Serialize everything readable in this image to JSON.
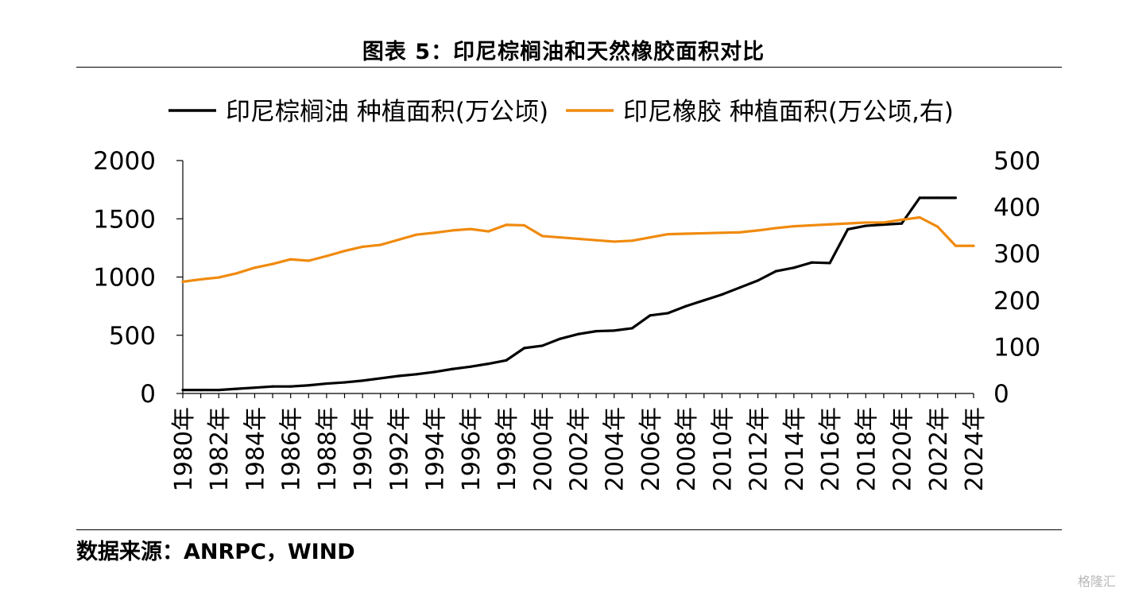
{
  "title": "图表 5：印尼棕榈油和天然橡胶面积对比",
  "source": "数据来源：ANRPC，WIND",
  "watermark": "格隆汇",
  "chart_data": {
    "type": "line",
    "title": "图表 5：印尼棕榈油和天然橡胶面积对比",
    "legend_position": "top",
    "grid": false,
    "x": [
      "1980年",
      "1981年",
      "1982年",
      "1983年",
      "1984年",
      "1985年",
      "1986年",
      "1987年",
      "1988年",
      "1989年",
      "1990年",
      "1991年",
      "1992年",
      "1993年",
      "1994年",
      "1995年",
      "1996年",
      "1997年",
      "1998年",
      "1999年",
      "2000年",
      "2001年",
      "2002年",
      "2003年",
      "2004年",
      "2005年",
      "2006年",
      "2007年",
      "2008年",
      "2009年",
      "2010年",
      "2011年",
      "2012年",
      "2013年",
      "2014年",
      "2015年",
      "2016年",
      "2017年",
      "2018年",
      "2019年",
      "2020年",
      "2021年",
      "2022年",
      "2023年",
      "2024年"
    ],
    "x_tick_labels": [
      "1980年",
      "1982年",
      "1984年",
      "1986年",
      "1988年",
      "1990年",
      "1992年",
      "1994年",
      "1996年",
      "1998年",
      "2000年",
      "2002年",
      "2004年",
      "2006年",
      "2008年",
      "2010年",
      "2012年",
      "2014年",
      "2016年",
      "2018年",
      "2020年",
      "2022年",
      "2024年"
    ],
    "y_left": {
      "ylim": [
        0,
        2000
      ],
      "ticks": [
        0,
        500,
        1000,
        1500,
        2000
      ]
    },
    "y_right": {
      "ylim": [
        0,
        500
      ],
      "ticks": [
        0,
        100,
        200,
        300,
        400,
        500
      ]
    },
    "series": [
      {
        "name": "印尼棕榈油 种植面积(万公顷)",
        "axis": "left",
        "color": "#000000",
        "values": [
          30,
          30,
          30,
          40,
          50,
          60,
          60,
          70,
          85,
          95,
          110,
          130,
          150,
          165,
          185,
          210,
          230,
          255,
          285,
          390,
          410,
          470,
          510,
          535,
          540,
          560,
          670,
          690,
          750,
          800,
          850,
          910,
          970,
          1050,
          1080,
          1125,
          1120,
          1410,
          1440,
          1450,
          1460,
          1680,
          1680,
          1680,
          null
        ]
      },
      {
        "name": "印尼橡胶 种植面积(万公顷,右)",
        "axis": "right",
        "color": "#F08A0E",
        "values": [
          240,
          245,
          249,
          258,
          270,
          278,
          288,
          285,
          295,
          306,
          315,
          319,
          330,
          341,
          345,
          350,
          353,
          348,
          362,
          361,
          338,
          335,
          332,
          329,
          326,
          328,
          335,
          342,
          343,
          344,
          345,
          346,
          350,
          355,
          359,
          361,
          363,
          365,
          367,
          367,
          373,
          378,
          358,
          317,
          317
        ]
      }
    ]
  }
}
